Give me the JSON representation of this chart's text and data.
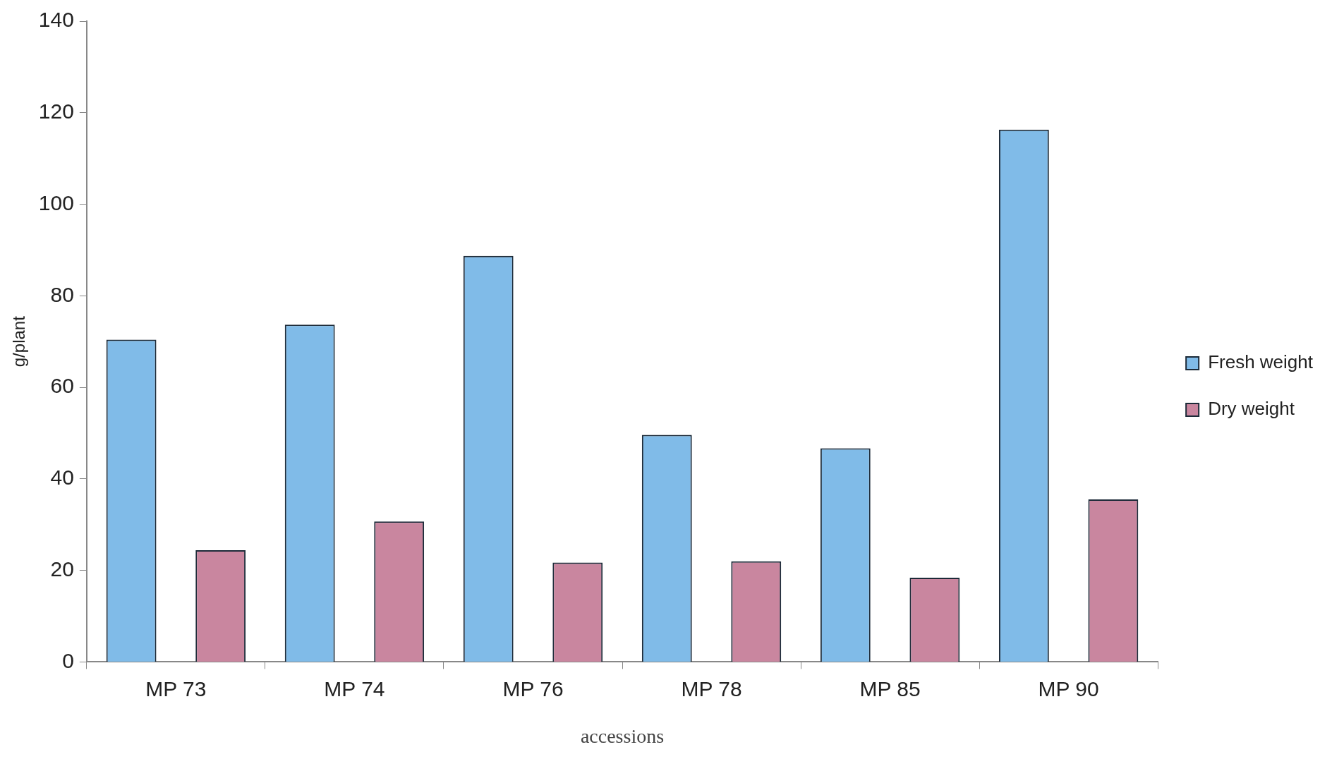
{
  "chart_data": {
    "type": "bar",
    "xlabel": "accessions",
    "ylabel": "g/plant",
    "categories": [
      "MP 73",
      "MP 74",
      "MP 76",
      "MP 78",
      "MP 85",
      "MP 90"
    ],
    "series": [
      {
        "name": "Fresh weight",
        "color": "#80bbe8",
        "values": [
          70.4,
          73.7,
          88.7,
          49.6,
          46.7,
          116.3
        ]
      },
      {
        "name": "Dry weight",
        "color": "#c9869f",
        "values": [
          24.4,
          30.7,
          21.7,
          22.0,
          18.4,
          35.5
        ]
      }
    ],
    "ylim": [
      0,
      140
    ],
    "yticks": [
      0,
      20,
      40,
      60,
      80,
      100,
      120,
      140
    ],
    "grid": false,
    "legend": "right"
  }
}
